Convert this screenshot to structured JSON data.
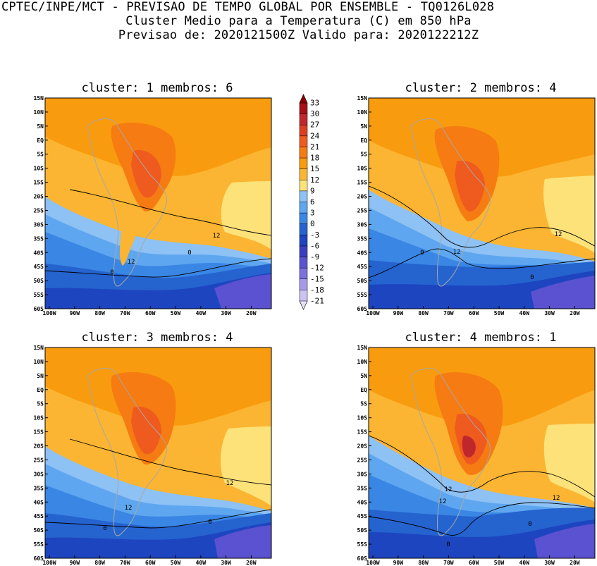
{
  "header": {
    "line1": "CPTEC/INPE/MCT - PREVISAO DE TEMPO GLOBAL POR ENSEMBLE - TQ0126L028",
    "line2": "Cluster Medio para a Temperatura (C) em 850 hPa",
    "line3": "Previsao de: 2020121500Z   Valido para: 2020122212Z"
  },
  "colorbar": {
    "levels": [
      "33",
      "30",
      "27",
      "24",
      "21",
      "18",
      "15",
      "12",
      "9",
      "6",
      "3",
      "0",
      "-3",
      "-6",
      "-9",
      "-12",
      "-15",
      "-18",
      "-21"
    ],
    "colors": [
      "#a50f15",
      "#c0272d",
      "#de3d22",
      "#ef5a1e",
      "#f57b12",
      "#f99b0e",
      "#fbb532",
      "#fde27a",
      "#8ec1f4",
      "#5ea6ef",
      "#3a86e4",
      "#2563cf",
      "#1d45c0",
      "#3a3ec0",
      "#5a52d0",
      "#7b70de",
      "#a79be9",
      "#cdc3f3"
    ]
  },
  "lat_labels": [
    "15N",
    "10N",
    "5N",
    "EQ",
    "5S",
    "10S",
    "15S",
    "20S",
    "25S",
    "30S",
    "35S",
    "40S",
    "45S",
    "50S",
    "55S",
    "60S"
  ],
  "lon_labels": [
    "100W",
    "90W",
    "80W",
    "70W",
    "60W",
    "50W",
    "40W",
    "30W",
    "20W"
  ],
  "panels": [
    {
      "title": "cluster: 1   membros: 6",
      "contour_labels": [
        "12",
        "12",
        "0",
        "0"
      ]
    },
    {
      "title": "cluster: 2   membros: 4",
      "contour_labels": [
        "12",
        "12",
        "0",
        "0"
      ]
    },
    {
      "title": "cluster: 3   membros: 4",
      "contour_labels": [
        "12",
        "12",
        "0",
        "0"
      ]
    },
    {
      "title": "cluster: 4   membros: 1",
      "contour_labels": [
        "12",
        "12",
        "12",
        "0",
        "0"
      ]
    }
  ]
}
